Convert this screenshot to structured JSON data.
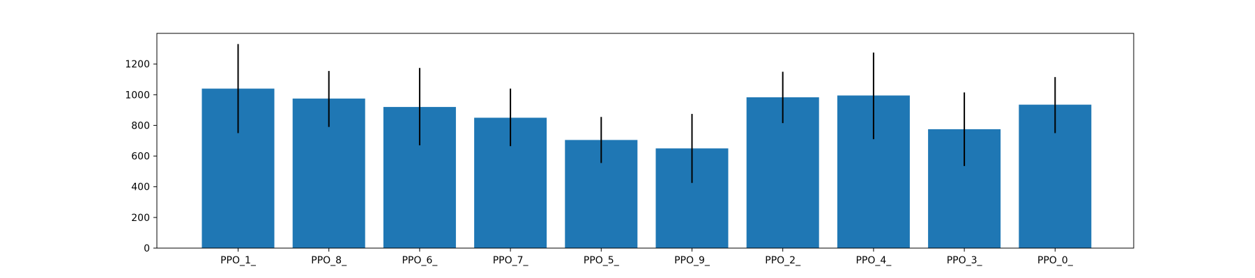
{
  "chart_data": {
    "type": "bar",
    "title": "",
    "xlabel": "",
    "ylabel": "",
    "categories": [
      "PPO_1_",
      "PPO_8_",
      "PPO_6_",
      "PPO_7_",
      "PPO_5_",
      "PPO_9_",
      "PPO_2_",
      "PPO_4_",
      "PPO_3_",
      "PPO_0_"
    ],
    "values": [
      1040,
      975,
      920,
      850,
      705,
      650,
      983,
      995,
      775,
      935
    ],
    "error_low": [
      750,
      790,
      670,
      665,
      555,
      425,
      815,
      710,
      535,
      750
    ],
    "error_high": [
      1330,
      1155,
      1175,
      1040,
      855,
      875,
      1150,
      1275,
      1015,
      1115
    ],
    "ylim": [
      0,
      1400
    ],
    "yticks": [
      0,
      200,
      400,
      600,
      800,
      1000,
      1200
    ],
    "grid": false,
    "bar_color": "#1f77b4",
    "error_color": "#000000"
  }
}
